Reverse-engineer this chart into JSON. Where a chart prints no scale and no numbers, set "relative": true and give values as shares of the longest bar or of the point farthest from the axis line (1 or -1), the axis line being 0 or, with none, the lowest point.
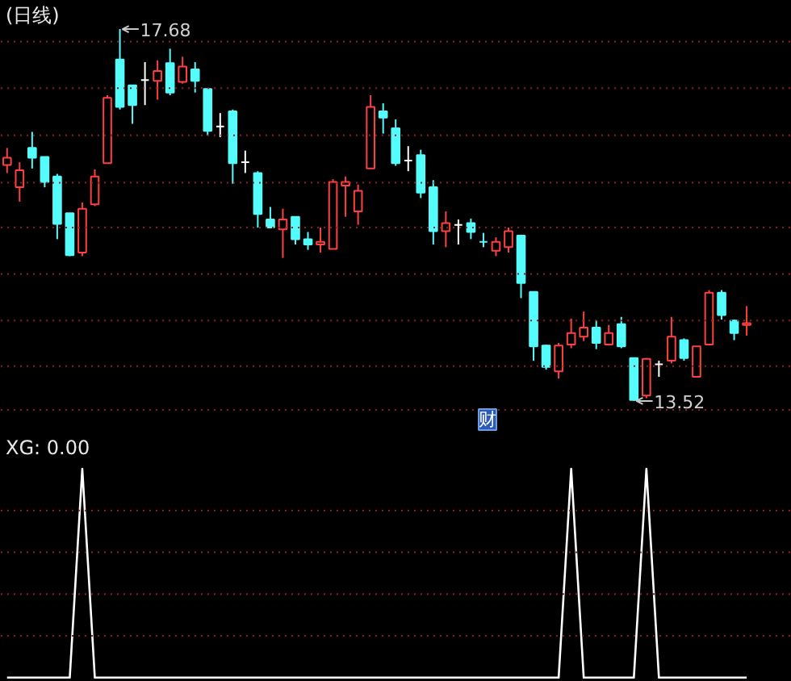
{
  "chart_data": [
    {
      "type": "candlestick",
      "title": "(日线)",
      "categories": [
        null,
        null,
        null,
        null,
        null,
        null,
        null,
        null,
        null,
        null,
        null,
        null,
        null,
        null,
        null,
        null,
        null,
        null,
        null,
        null,
        null,
        null,
        null,
        null,
        null,
        null,
        null,
        null,
        null,
        null,
        null,
        null,
        null,
        null,
        null,
        null,
        null,
        null,
        null,
        null,
        null,
        null,
        null,
        null,
        null,
        null,
        null,
        null,
        null,
        null,
        null,
        null,
        null,
        null,
        null,
        null,
        null,
        null,
        null,
        null
      ],
      "ohlc": [
        [
          16.16,
          16.35,
          16.07,
          16.24
        ],
        [
          15.91,
          16.19,
          15.75,
          16.1
        ],
        [
          16.35,
          16.53,
          16.12,
          16.24
        ],
        [
          16.25,
          16.25,
          15.91,
          15.97
        ],
        [
          16.03,
          16.06,
          15.33,
          15.5
        ],
        [
          15.62,
          15.62,
          15.14,
          15.15
        ],
        [
          15.18,
          15.74,
          15.14,
          15.67
        ],
        [
          15.72,
          16.11,
          15.7,
          16.03
        ],
        [
          16.18,
          16.94,
          16.18,
          16.91
        ],
        [
          17.34,
          17.68,
          16.78,
          16.81
        ],
        [
          17.05,
          17.05,
          16.62,
          16.83
        ],
        [
          17.11,
          17.31,
          16.83,
          17.11
        ],
        [
          17.1,
          17.33,
          16.89,
          17.21
        ],
        [
          17.3,
          17.46,
          16.94,
          16.97
        ],
        [
          17.09,
          17.37,
          17.07,
          17.26
        ],
        [
          17.23,
          17.31,
          16.97,
          17.1
        ],
        [
          17.01,
          17.01,
          16.49,
          16.54
        ],
        [
          16.59,
          16.74,
          16.47,
          16.59
        ],
        [
          16.76,
          16.78,
          15.95,
          16.18
        ],
        [
          16.19,
          16.32,
          16.07,
          16.19
        ],
        [
          16.07,
          16.09,
          15.46,
          15.61
        ],
        [
          15.55,
          15.69,
          15.46,
          15.46
        ],
        [
          15.44,
          15.67,
          15.12,
          15.55
        ],
        [
          15.58,
          15.58,
          15.27,
          15.33
        ],
        [
          15.33,
          15.41,
          15.21,
          15.27
        ],
        [
          15.27,
          15.46,
          15.18,
          15.3
        ],
        [
          15.22,
          16.0,
          15.22,
          15.97
        ],
        [
          15.93,
          16.03,
          15.58,
          15.97
        ],
        [
          15.64,
          15.94,
          15.49,
          15.87
        ],
        [
          16.12,
          16.94,
          16.12,
          16.81
        ],
        [
          16.76,
          16.85,
          16.51,
          16.69
        ],
        [
          16.57,
          16.67,
          16.15,
          16.18
        ],
        [
          16.21,
          16.37,
          16.09,
          16.21
        ],
        [
          16.27,
          16.33,
          15.79,
          15.85
        ],
        [
          15.91,
          15.99,
          15.27,
          15.42
        ],
        [
          15.42,
          15.64,
          15.24,
          15.51
        ],
        [
          15.49,
          15.55,
          15.27,
          15.49
        ],
        [
          15.51,
          15.56,
          15.33,
          15.41
        ],
        [
          15.3,
          15.4,
          15.24,
          15.3
        ],
        [
          15.2,
          15.35,
          15.14,
          15.3
        ],
        [
          15.24,
          15.46,
          15.18,
          15.42
        ],
        [
          15.37,
          15.38,
          14.67,
          14.84
        ],
        [
          14.74,
          14.74,
          13.97,
          14.13
        ],
        [
          14.14,
          14.15,
          13.87,
          13.9
        ],
        [
          13.85,
          14.17,
          13.77,
          14.14
        ],
        [
          14.15,
          14.44,
          14.11,
          14.28
        ],
        [
          14.24,
          14.52,
          14.19,
          14.34
        ],
        [
          14.34,
          14.42,
          14.1,
          14.17
        ],
        [
          14.15,
          14.37,
          14.14,
          14.28
        ],
        [
          14.38,
          14.46,
          14.11,
          14.13
        ],
        [
          14.0,
          14.0,
          13.52,
          13.53
        ],
        [
          13.58,
          14.0,
          13.55,
          13.99
        ],
        [
          13.93,
          13.97,
          13.79,
          13.93
        ],
        [
          13.97,
          14.46,
          13.94,
          14.24
        ],
        [
          14.2,
          14.22,
          13.97,
          14.0
        ],
        [
          13.79,
          14.13,
          13.79,
          14.13
        ],
        [
          14.15,
          14.76,
          14.15,
          14.73
        ],
        [
          14.73,
          14.76,
          14.43,
          14.48
        ],
        [
          14.42,
          14.43,
          14.2,
          14.28
        ],
        [
          14.37,
          14.58,
          14.25,
          14.39
        ]
      ],
      "colors": [
        "#ff4040",
        "#ff4040",
        "#54fcfc",
        "#54fcfc",
        "#54fcfc",
        "#54fcfc",
        "#ff4040",
        "#ff4040",
        "#ff4040",
        "#54fcfc",
        "#54fcfc",
        "#ffffff",
        "#ff4040",
        "#54fcfc",
        "#ff4040",
        "#54fcfc",
        "#54fcfc",
        "#ffffff",
        "#54fcfc",
        "#ffffff",
        "#54fcfc",
        "#54fcfc",
        "#ff4040",
        "#54fcfc",
        "#54fcfc",
        "#ff4040",
        "#ff4040",
        "#ff4040",
        "#ff4040",
        "#ff4040",
        "#54fcfc",
        "#54fcfc",
        "#ffffff",
        "#54fcfc",
        "#54fcfc",
        "#ff4040",
        "#ffffff",
        "#54fcfc",
        "#54fcfc",
        "#ff4040",
        "#ff4040",
        "#54fcfc",
        "#54fcfc",
        "#54fcfc",
        "#ff4040",
        "#ff4040",
        "#ff4040",
        "#54fcfc",
        "#ff4040",
        "#54fcfc",
        "#54fcfc",
        "#ff4040",
        "#ffffff",
        "#ff4040",
        "#54fcfc",
        "#ff4040",
        "#ff4040",
        "#54fcfc",
        "#54fcfc",
        "#ff4040"
      ],
      "annotations": [
        "17.68",
        "13.52",
        "财"
      ],
      "ref_lines": [
        {
          "axis": "y",
          "value": 17.54,
          "color": "#9a1a1a",
          "line_style": "dotted"
        },
        {
          "axis": "y",
          "value": 17.02,
          "color": "#9a1a1a",
          "line_style": "dotted"
        },
        {
          "axis": "y",
          "value": 16.49,
          "color": "#9a1a1a",
          "line_style": "dotted"
        },
        {
          "axis": "y",
          "value": 15.96,
          "color": "#9a1a1a",
          "line_style": "dotted"
        },
        {
          "axis": "y",
          "value": 15.46,
          "color": "#9a1a1a",
          "line_style": "dotted"
        },
        {
          "axis": "y",
          "value": 14.94,
          "color": "#9a1a1a",
          "line_style": "dotted"
        },
        {
          "axis": "y",
          "value": 14.42,
          "color": "#9a1a1a",
          "line_style": "dotted"
        },
        {
          "axis": "y",
          "value": 13.91,
          "color": "#9a1a1a",
          "line_style": "dotted"
        },
        {
          "axis": "y",
          "value": 13.42,
          "color": "#9a1a1a",
          "line_style": "dotted"
        }
      ]
    },
    {
      "type": "line",
      "title": "XG: 0.00",
      "relative": true,
      "categories": [
        null,
        null,
        null,
        null,
        null,
        null,
        null,
        null,
        null,
        null,
        null,
        null,
        null,
        null,
        null,
        null,
        null,
        null,
        null,
        null,
        null,
        null,
        null,
        null,
        null,
        null,
        null,
        null,
        null,
        null,
        null,
        null,
        null,
        null,
        null,
        null,
        null,
        null,
        null,
        null,
        null,
        null,
        null,
        null,
        null,
        null,
        null,
        null,
        null,
        null,
        null,
        null,
        null,
        null,
        null,
        null,
        null,
        null,
        null,
        null
      ],
      "series": [
        {
          "color": "#ffffff",
          "values": [
            0,
            0,
            0,
            0,
            0,
            0,
            1,
            0,
            0,
            0,
            0,
            0,
            0,
            0,
            0,
            0,
            0,
            0,
            0,
            0,
            0,
            0,
            0,
            0,
            0,
            0,
            0,
            0,
            0,
            0,
            0,
            0,
            0,
            0,
            0,
            0,
            0,
            0,
            0,
            0,
            0,
            0,
            0,
            0,
            0,
            1,
            0,
            0,
            0,
            0,
            0,
            1,
            0,
            0,
            0,
            0,
            0,
            0,
            0,
            0
          ]
        }
      ],
      "ref_lines": [
        {
          "axis": "y",
          "value": 0.2,
          "color": "#9a1a1a",
          "line_style": "dotted"
        },
        {
          "axis": "y",
          "value": 0.4,
          "color": "#9a1a1a",
          "line_style": "dotted"
        },
        {
          "axis": "y",
          "value": 0.6,
          "color": "#9a1a1a",
          "line_style": "dotted"
        },
        {
          "axis": "y",
          "value": 0.8,
          "color": "#9a1a1a",
          "line_style": "dotted"
        }
      ]
    }
  ]
}
